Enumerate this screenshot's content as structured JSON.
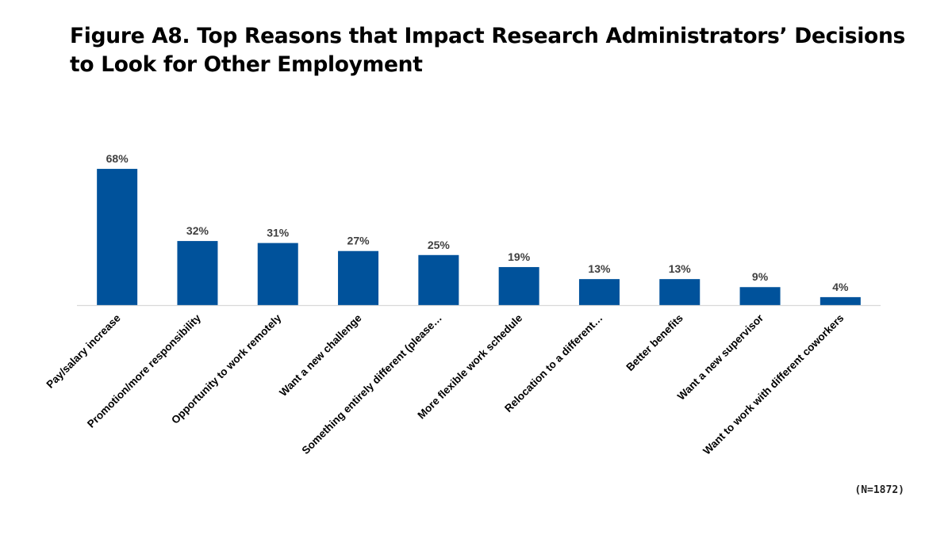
{
  "chart_data": {
    "type": "bar",
    "title": "Figure A8. Top Reasons that Impact Research Administrators’ Decisions to Look for Other Employment",
    "title_lines": [
      "Figure A8. Top Reasons that Impact Research Administrators’ Decisions",
      "to Look for Other Employment"
    ],
    "categories": [
      "Pay/salary increase",
      "Promotion/more responsibility",
      "Opportunity to work remotely",
      "Want a new challenge",
      "Something entirely different (please…",
      "More flexible work schedule",
      "Relocation to a different…",
      "Better benefits",
      "Want a new supervisor",
      "Want to work with different coworkers"
    ],
    "values": [
      68,
      32,
      31,
      27,
      25,
      19,
      13,
      13,
      9,
      4
    ],
    "value_labels": [
      "68%",
      "32%",
      "31%",
      "27%",
      "25%",
      "19%",
      "13%",
      "13%",
      "9%",
      "4%"
    ],
    "unit": "%",
    "xlabel": "",
    "ylabel": "",
    "ylim": [
      0,
      70
    ],
    "grid": false,
    "legend": "none",
    "bar_color": "#00529B",
    "axis_color": "#D9D9D9",
    "note": "(N=1872)"
  }
}
